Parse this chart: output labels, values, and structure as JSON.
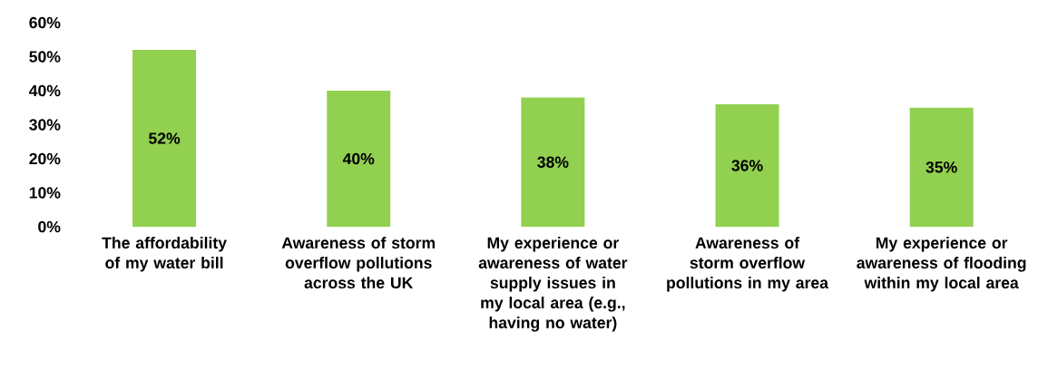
{
  "chart_data": {
    "type": "bar",
    "categories": [
      "The affordability of my water bill",
      "Awareness of storm overflow pollutions across the UK",
      "My experience or awareness of water supply issues in my local area (e.g., having no water)",
      "Awareness of storm overflow pollutions in my area",
      "My experience or awareness of flooding within my local area"
    ],
    "values": [
      52,
      40,
      38,
      36,
      35
    ],
    "value_labels": [
      "52%",
      "40%",
      "38%",
      "36%",
      "35%"
    ],
    "color": "#92d050",
    "ylim": [
      0,
      60
    ],
    "yticks": [
      {
        "value": 0,
        "label": "0%"
      },
      {
        "value": 10,
        "label": "10%"
      },
      {
        "value": 20,
        "label": "20%"
      },
      {
        "value": 30,
        "label": "30%"
      },
      {
        "value": 40,
        "label": "40%"
      },
      {
        "value": 50,
        "label": "50%"
      },
      {
        "value": 60,
        "label": "60%"
      }
    ],
    "grid": false
  }
}
